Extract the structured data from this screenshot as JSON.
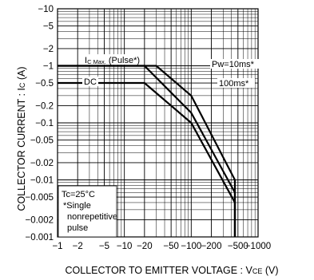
{
  "chart_data": {
    "type": "line",
    "title": "",
    "x_axis": {
      "scale": "log",
      "range": [
        -1000,
        -1
      ],
      "label_main": "COLLECTOR TO EMITTER VOLTAGE : V",
      "label_sub": "CE",
      "label_unit": " (V)",
      "ticks": [
        {
          "value": -1,
          "label": "−1"
        },
        {
          "value": -2,
          "label": "−2"
        },
        {
          "value": -5,
          "label": "−5"
        },
        {
          "value": -10,
          "label": "−10"
        },
        {
          "value": -20,
          "label": "−20"
        },
        {
          "value": -50,
          "label": "−50"
        },
        {
          "value": -100,
          "label": "−100"
        },
        {
          "value": -200,
          "label": "−200"
        },
        {
          "value": -500,
          "label": "−500"
        },
        {
          "value": -1000,
          "label": "−1000"
        }
      ]
    },
    "y_axis": {
      "scale": "log",
      "range": [
        -0.001,
        -10
      ],
      "label_main": "COLLECTOR CURRENT : I",
      "label_sub": "C",
      "label_unit": " (A)",
      "ticks": [
        {
          "value": -10,
          "label": "−10"
        },
        {
          "value": -5,
          "label": "−5"
        },
        {
          "value": -2,
          "label": "−2"
        },
        {
          "value": -1,
          "label": "−1"
        },
        {
          "value": -0.5,
          "label": "−0.5"
        },
        {
          "value": -0.2,
          "label": "−0.2"
        },
        {
          "value": -0.1,
          "label": "−0.1"
        },
        {
          "value": -0.05,
          "label": "−0.05"
        },
        {
          "value": -0.02,
          "label": "−0.02"
        },
        {
          "value": -0.01,
          "label": "−0.01"
        },
        {
          "value": -0.005,
          "label": "−0.005"
        },
        {
          "value": -0.002,
          "label": "−0.002"
        },
        {
          "value": -0.001,
          "label": "−0.001"
        }
      ]
    },
    "grid": true,
    "series": [
      {
        "name": "DC",
        "points": [
          [
            -1,
            -0.5
          ],
          [
            -20,
            -0.5
          ],
          [
            -100,
            -0.1
          ],
          [
            -450,
            -0.004
          ],
          [
            -450,
            -0.001
          ]
        ]
      },
      {
        "name": "100ms*",
        "points": [
          [
            -1,
            -1
          ],
          [
            -20,
            -1
          ],
          [
            -100,
            -0.15
          ],
          [
            -450,
            -0.006
          ],
          [
            -450,
            -0.001
          ]
        ]
      },
      {
        "name": "Pw=10ms*",
        "points": [
          [
            -1,
            -1
          ],
          [
            -30,
            -1
          ],
          [
            -100,
            -0.3
          ],
          [
            -450,
            -0.01
          ],
          [
            -450,
            -0.001
          ]
        ]
      }
    ],
    "annotations": {
      "ic_max_main": "I",
      "ic_max_sub": "C Max.",
      "ic_max_rest": " (Pulse*)",
      "dc_label": "DC",
      "pw_label": "Pw=10ms*",
      "ms100_label": "100ms*",
      "conditions": [
        "Tc=25°C",
        "*Single",
        "nonrepetitive",
        "pulse"
      ]
    },
    "colors": {
      "line": "#000000",
      "background": "#ffffff"
    }
  }
}
